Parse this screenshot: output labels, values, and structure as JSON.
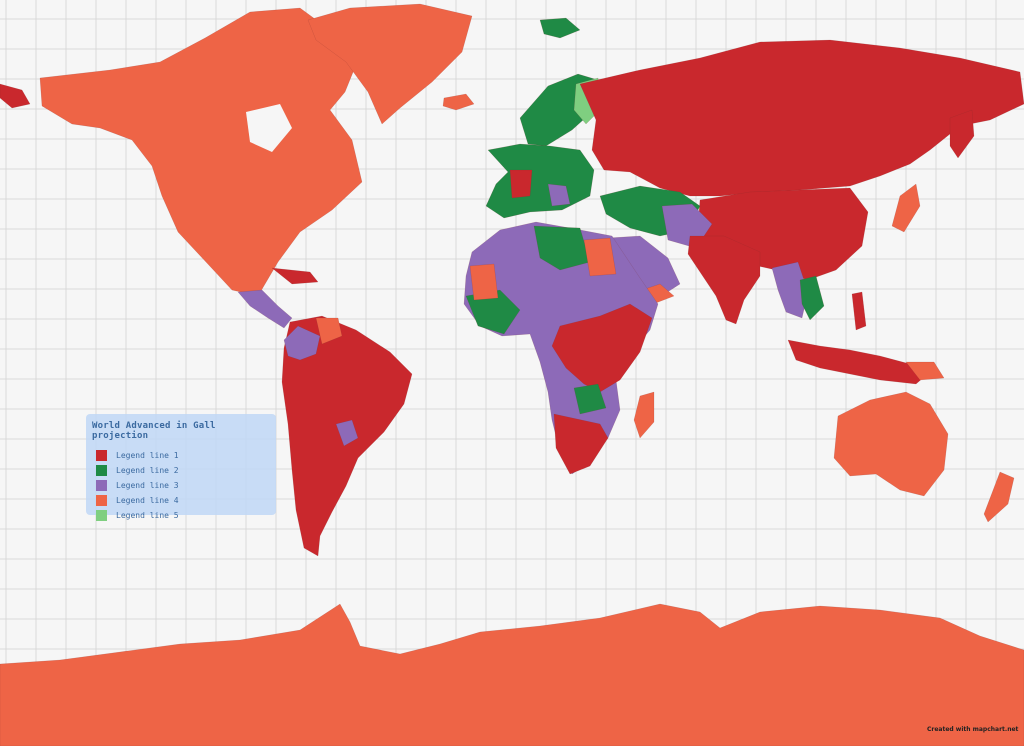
{
  "legend": {
    "title": "World Advanced in Gall projection",
    "items": [
      {
        "label": "Legend line 1",
        "color": "#c9282d"
      },
      {
        "label": "Legend line 2",
        "color": "#1f8a45"
      },
      {
        "label": "Legend line 3",
        "color": "#8d6ab8"
      },
      {
        "label": "Legend line 4",
        "color": "#ee6446"
      },
      {
        "label": "Legend line 5",
        "color": "#7fcf80"
      }
    ]
  },
  "credit": "Created with mapchart.net",
  "colors": {
    "ocean": "#f6f6f6",
    "grid": "#d9d9d9"
  }
}
